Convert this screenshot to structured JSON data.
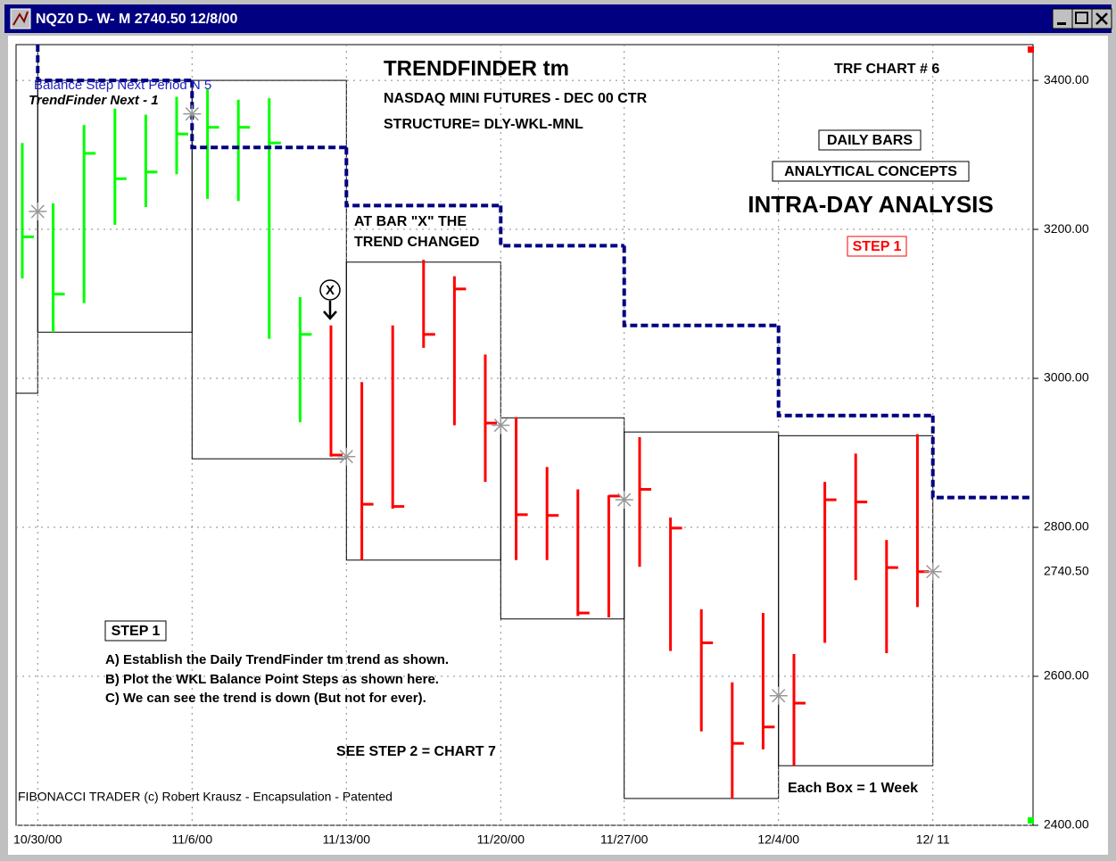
{
  "window": {
    "title": "NQZ0 D- W- M 2740.50 12/8/00"
  },
  "chart_data": {
    "type": "ohlc",
    "title": "TRENDFINDER tm",
    "subtitle": "NASDAQ MINI FUTURES - DEC 00 CTR",
    "structure": "STRUCTURE= DLY-WKL-MNL",
    "chart_number": "TRF CHART # 6",
    "tags": [
      "DAILY BARS",
      "ANALYTICAL CONCEPTS"
    ],
    "heading": "INTRA-DAY ANALYSIS",
    "step_tag": "STEP 1",
    "annotations": {
      "trend_change": [
        "AT BAR \"X\" THE",
        "TREND CHANGED"
      ],
      "bar_marker": "X",
      "balance_legend": "Balance Step Next Period N 5",
      "trendfinder_legend": "TrendFinder Next - 1",
      "step_title": "STEP 1",
      "steps": [
        "A) Establish the Daily TrendFinder tm trend as shown.",
        "B) Plot the WKL Balance Point Steps as shown here.",
        "C) We can see the trend is down (But not for ever)."
      ],
      "see_next": "SEE STEP 2 = CHART 7",
      "box_note": "Each Box = 1 Week",
      "footer": "FIBONACCI TRADER (c) Robert Krausz - Encapsulation - Patented"
    },
    "ylim": [
      2400,
      3448
    ],
    "yticks": [
      {
        "value": 2400,
        "label": "2400.00"
      },
      {
        "value": 2600,
        "label": "2600.00"
      },
      {
        "value": 2800,
        "label": "2800.00"
      },
      {
        "value": 3000,
        "label": "3000.00"
      },
      {
        "value": 3200,
        "label": "3200.00"
      },
      {
        "value": 3400,
        "label": "3400.00"
      }
    ],
    "last_price": {
      "value": 2740.5,
      "label": "2740.50"
    },
    "grid": true,
    "step_color": "#000080",
    "weeks": [
      {
        "label": null,
        "high": 3448,
        "low": 2980,
        "balance": null,
        "step": null,
        "bars": [
          {
            "high": 3316,
            "low": 3134,
            "close": 3190,
            "color": "#00ff00"
          }
        ]
      },
      {
        "label": "10/30/00",
        "high": 3400,
        "low": 3062,
        "balance": 3224,
        "step": 3400,
        "bars": [
          {
            "high": 3235,
            "low": 3062,
            "close": 3113,
            "color": "#00ff00"
          },
          {
            "high": 3340,
            "low": 3101,
            "close": 3302,
            "color": "#00ff00"
          },
          {
            "high": 3362,
            "low": 3206,
            "close": 3268,
            "color": "#00ff00"
          },
          {
            "high": 3354,
            "low": 3230,
            "close": 3277,
            "color": "#00ff00"
          },
          {
            "high": 3378,
            "low": 3274,
            "close": 3328,
            "color": "#00ff00"
          }
        ]
      },
      {
        "label": "11/6/00",
        "high": 3400,
        "low": 2892,
        "balance": 3355,
        "step": 3310,
        "bars": [
          {
            "high": 3388,
            "low": 3241,
            "close": 3337,
            "color": "#00ff00"
          },
          {
            "high": 3374,
            "low": 3238,
            "close": 3337,
            "color": "#00ff00"
          },
          {
            "high": 3376,
            "low": 3053,
            "close": 3316,
            "color": "#00ff00"
          },
          {
            "high": 3109,
            "low": 2941,
            "close": 3059,
            "color": "#00ff00"
          },
          {
            "high": 3071,
            "low": 2895,
            "close": 2897,
            "color": "#ff0000"
          }
        ]
      },
      {
        "label": "11/13/00",
        "high": 3156,
        "low": 2756,
        "balance": 2895,
        "step": 3232,
        "bars": [
          {
            "high": 2995,
            "low": 2756,
            "close": 2831,
            "color": "#ff0000"
          },
          {
            "high": 3071,
            "low": 2825,
            "close": 2828,
            "color": "#ff0000"
          },
          {
            "high": 3159,
            "low": 3041,
            "close": 3059,
            "color": "#ff0000"
          },
          {
            "high": 3137,
            "low": 2937,
            "close": 3120,
            "color": "#ff0000"
          },
          {
            "high": 3032,
            "low": 2861,
            "close": 2940,
            "color": "#ff0000"
          }
        ]
      },
      {
        "label": "11/20/00",
        "high": 2947,
        "low": 2677,
        "balance": 2937,
        "step": 3178,
        "bars": [
          {
            "high": 2948,
            "low": 2756,
            "close": 2817,
            "color": "#ff0000"
          },
          {
            "high": 2881,
            "low": 2756,
            "close": 2816,
            "color": "#ff0000"
          },
          {
            "high": 2851,
            "low": 2681,
            "close": 2685,
            "color": "#ff0000"
          },
          {
            "high": 2843,
            "low": 2679,
            "close": 2842,
            "color": "#ff0000"
          }
        ]
      },
      {
        "label": "11/27/00",
        "high": 2928,
        "low": 2436,
        "balance": 2837,
        "step": 3071,
        "bars": [
          {
            "high": 2921,
            "low": 2747,
            "close": 2851,
            "color": "#ff0000"
          },
          {
            "high": 2813,
            "low": 2634,
            "close": 2799,
            "color": "#ff0000"
          },
          {
            "high": 2690,
            "low": 2526,
            "close": 2645,
            "color": "#ff0000"
          },
          {
            "high": 2592,
            "low": 2436,
            "close": 2510,
            "color": "#ff0000"
          },
          {
            "high": 2685,
            "low": 2502,
            "close": 2532,
            "color": "#ff0000"
          }
        ]
      },
      {
        "label": "12/4/00",
        "high": 2923,
        "low": 2480,
        "balance": 2574,
        "step": 2950,
        "bars": [
          {
            "high": 2630,
            "low": 2480,
            "close": 2564,
            "color": "#ff0000"
          },
          {
            "high": 2861,
            "low": 2645,
            "close": 2837,
            "color": "#ff0000"
          },
          {
            "high": 2899,
            "low": 2729,
            "close": 2834,
            "color": "#ff0000"
          },
          {
            "high": 2783,
            "low": 2631,
            "close": 2746,
            "color": "#ff0000"
          },
          {
            "high": 2925,
            "low": 2693,
            "close": 2740.5,
            "color": "#ff0000"
          }
        ]
      },
      {
        "label": "12/ 11",
        "balance": 2740.5,
        "step": 2840,
        "bars": []
      }
    ]
  }
}
